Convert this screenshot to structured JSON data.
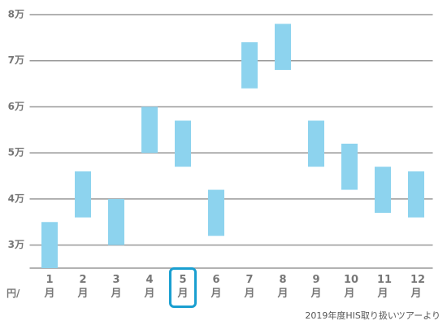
{
  "chart_data": {
    "type": "floating_bar",
    "categories": [
      "1月",
      "2月",
      "3月",
      "4月",
      "5月",
      "6月",
      "7月",
      "8月",
      "9月",
      "10月",
      "11月",
      "12月"
    ],
    "low": [
      2.5,
      3.6,
      3.0,
      5.0,
      4.7,
      3.2,
      6.4,
      6.8,
      4.7,
      4.2,
      3.7,
      3.6
    ],
    "high": [
      3.5,
      4.6,
      4.0,
      6.0,
      5.7,
      4.2,
      7.4,
      7.8,
      5.7,
      5.2,
      4.7,
      4.6
    ],
    "color": "#8dd3ee",
    "ylim": [
      2.5,
      8
    ],
    "yticks": [
      {
        "value": 3,
        "label": "3万"
      },
      {
        "value": 4,
        "label": "4万"
      },
      {
        "value": 5,
        "label": "5万"
      },
      {
        "value": 6,
        "label": "6万"
      },
      {
        "value": 7,
        "label": "7万"
      },
      {
        "value": 8,
        "label": "8万"
      }
    ],
    "grid": true,
    "y_unit": "円/",
    "highlight": "5月",
    "highlight_color": "#1a9fd0",
    "note": "2019年度HIS取り扱いツアーより"
  }
}
